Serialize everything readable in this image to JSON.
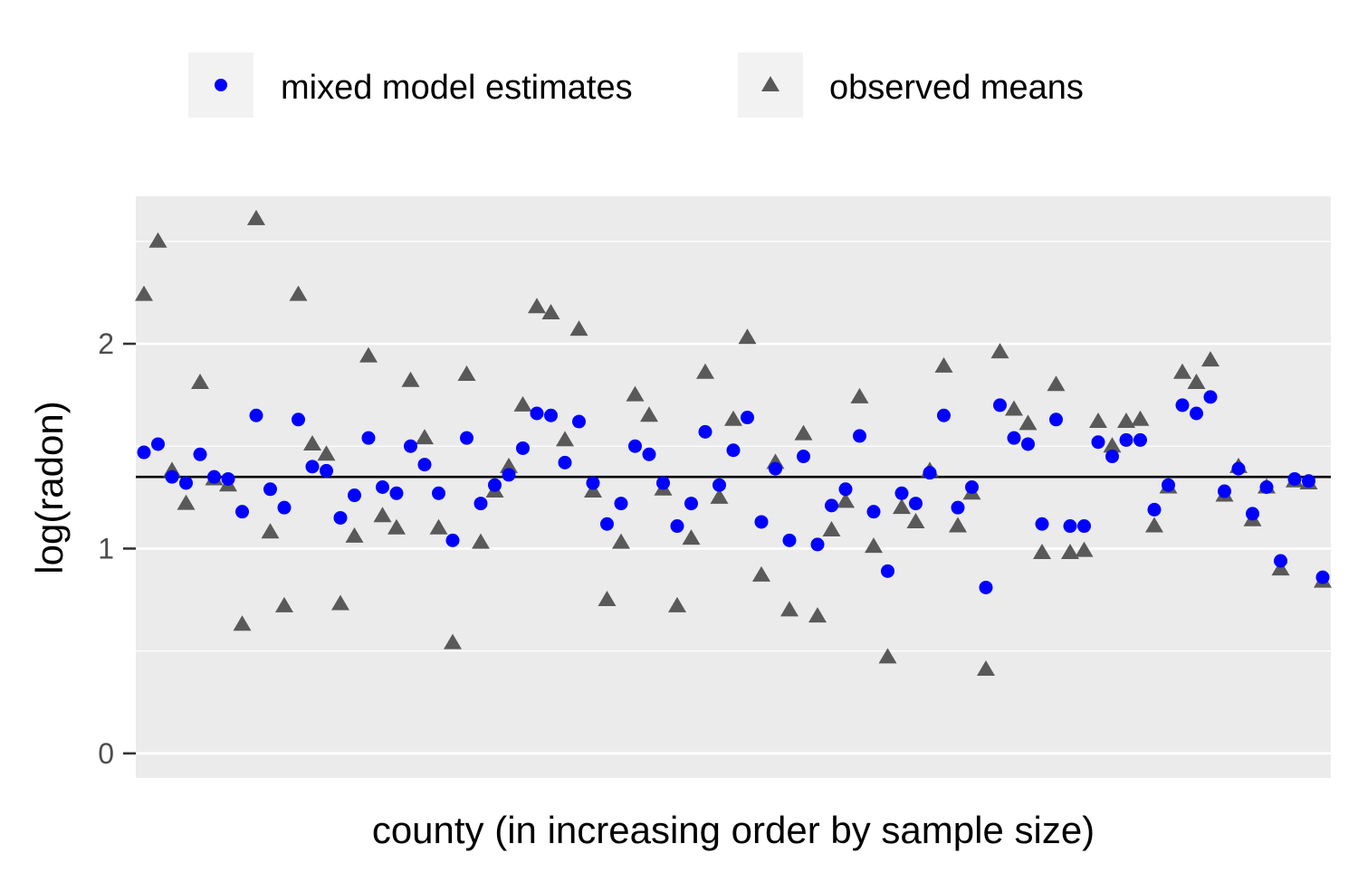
{
  "chart_data": {
    "type": "scatter",
    "xlabel": "county (in increasing order by sample size)",
    "ylabel": "log(radon)",
    "ylim": [
      -0.12,
      2.72
    ],
    "yticks": [
      0,
      1,
      2
    ],
    "grid": true,
    "legend_position": "top",
    "reference_line": {
      "y": 1.35,
      "color": "#000000"
    },
    "series": [
      {
        "name": "mixed model estimates",
        "marker": "circle",
        "color": "#0000ff",
        "y": [
          1.47,
          1.51,
          1.35,
          1.32,
          1.46,
          1.35,
          1.34,
          1.18,
          1.65,
          1.29,
          1.2,
          1.63,
          1.4,
          1.38,
          1.15,
          1.26,
          1.54,
          1.3,
          1.27,
          1.5,
          1.41,
          1.27,
          1.04,
          1.54,
          1.22,
          1.31,
          1.36,
          1.49,
          1.66,
          1.65,
          1.42,
          1.62,
          1.32,
          1.12,
          1.22,
          1.5,
          1.46,
          1.32,
          1.11,
          1.22,
          1.57,
          1.31,
          1.48,
          1.64,
          1.13,
          1.39,
          1.04,
          1.45,
          1.02,
          1.21,
          1.29,
          1.55,
          1.18,
          0.89,
          1.27,
          1.22,
          1.37,
          1.65,
          1.2,
          1.3,
          0.81,
          1.7,
          1.54,
          1.51,
          1.12,
          1.63,
          1.11,
          1.11,
          1.52,
          1.45,
          1.53,
          1.53,
          1.19,
          1.31,
          1.7,
          1.66,
          1.74,
          1.28,
          1.39,
          1.17,
          1.3,
          0.94,
          1.34,
          1.33,
          0.86
        ]
      },
      {
        "name": "observed means",
        "marker": "triangle",
        "color": "#595959",
        "y": [
          2.24,
          2.5,
          1.38,
          1.22,
          1.81,
          1.34,
          1.31,
          0.63,
          2.61,
          1.08,
          0.72,
          2.24,
          1.51,
          1.46,
          0.73,
          1.06,
          1.94,
          1.16,
          1.1,
          1.82,
          1.54,
          1.1,
          0.54,
          1.85,
          1.03,
          1.28,
          1.4,
          1.7,
          2.18,
          2.15,
          1.53,
          2.07,
          1.28,
          0.75,
          1.03,
          1.75,
          1.65,
          1.29,
          0.72,
          1.05,
          1.86,
          1.25,
          1.63,
          2.03,
          0.87,
          1.42,
          0.7,
          1.56,
          0.67,
          1.09,
          1.23,
          1.74,
          1.01,
          0.47,
          1.2,
          1.13,
          1.38,
          1.89,
          1.11,
          1.27,
          0.41,
          1.96,
          1.68,
          1.61,
          0.98,
          1.8,
          0.98,
          0.99,
          1.62,
          1.5,
          1.62,
          1.63,
          1.11,
          1.3,
          1.86,
          1.81,
          1.92,
          1.26,
          1.4,
          1.14,
          1.3,
          0.9,
          1.33,
          1.32,
          0.84
        ]
      }
    ]
  }
}
